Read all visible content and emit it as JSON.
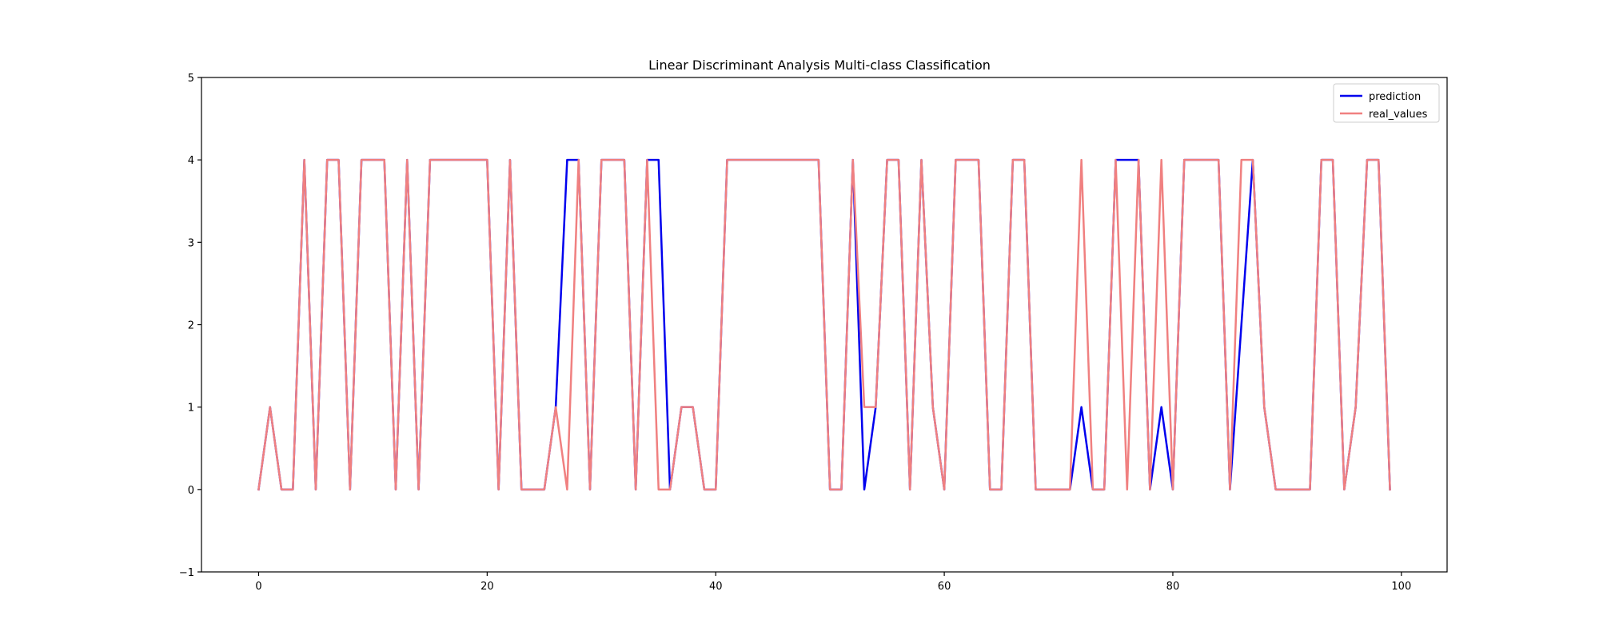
{
  "chart_data": {
    "type": "line",
    "title": "Linear Discriminant Analysis Multi-class Classification",
    "xlabel": "",
    "ylabel": "",
    "xlim": [
      -5,
      104
    ],
    "ylim": [
      -1,
      5
    ],
    "xticks": [
      0,
      20,
      40,
      60,
      80,
      100
    ],
    "yticks": [
      -1,
      0,
      1,
      2,
      3,
      4,
      5
    ],
    "grid": false,
    "legend_position": "top-right",
    "x": [
      0,
      1,
      2,
      3,
      4,
      5,
      6,
      7,
      8,
      9,
      10,
      11,
      12,
      13,
      14,
      15,
      16,
      17,
      18,
      19,
      20,
      21,
      22,
      23,
      24,
      25,
      26,
      27,
      28,
      29,
      30,
      31,
      32,
      33,
      34,
      35,
      36,
      37,
      38,
      39,
      40,
      41,
      42,
      43,
      44,
      45,
      46,
      47,
      48,
      49,
      50,
      51,
      52,
      53,
      54,
      55,
      56,
      57,
      58,
      59,
      60,
      61,
      62,
      63,
      64,
      65,
      66,
      67,
      68,
      69,
      70,
      71,
      72,
      73,
      74,
      75,
      76,
      77,
      78,
      79,
      80,
      81,
      82,
      83,
      84,
      85,
      86,
      87,
      88,
      89,
      90,
      91,
      92,
      93,
      94,
      95,
      96,
      97,
      98,
      99
    ],
    "series": [
      {
        "name": "prediction",
        "color": "#0000ee",
        "values": [
          0,
          1,
          0,
          0,
          4,
          0,
          4,
          4,
          0,
          4,
          4,
          4,
          0,
          4,
          0,
          4,
          4,
          4,
          4,
          4,
          4,
          0,
          4,
          0,
          0,
          0,
          1,
          4,
          4,
          0,
          4,
          4,
          4,
          0,
          4,
          4,
          0,
          1,
          1,
          0,
          0,
          4,
          4,
          4,
          4,
          4,
          4,
          4,
          4,
          4,
          0,
          0,
          4,
          0,
          1,
          4,
          4,
          0,
          4,
          1,
          0,
          4,
          4,
          4,
          0,
          0,
          4,
          4,
          0,
          0,
          0,
          0,
          1,
          0,
          0,
          4,
          4,
          4,
          0,
          1,
          0,
          4,
          4,
          4,
          4,
          0,
          2,
          4,
          1,
          0,
          0,
          0,
          0,
          4,
          4,
          0,
          1,
          4,
          4,
          0
        ]
      },
      {
        "name": "real_values",
        "color": "#f08080",
        "values": [
          0,
          1,
          0,
          0,
          4,
          0,
          4,
          4,
          0,
          4,
          4,
          4,
          0,
          4,
          0,
          4,
          4,
          4,
          4,
          4,
          4,
          0,
          4,
          0,
          0,
          0,
          1,
          0,
          4,
          0,
          4,
          4,
          4,
          0,
          4,
          0,
          0,
          1,
          1,
          0,
          0,
          4,
          4,
          4,
          4,
          4,
          4,
          4,
          4,
          4,
          0,
          0,
          4,
          1,
          1,
          4,
          4,
          0,
          4,
          1,
          0,
          4,
          4,
          4,
          0,
          0,
          4,
          4,
          0,
          0,
          0,
          0,
          4,
          0,
          0,
          4,
          0,
          4,
          0,
          4,
          0,
          4,
          4,
          4,
          4,
          0,
          4,
          4,
          1,
          0,
          0,
          0,
          0,
          4,
          4,
          0,
          1,
          4,
          4,
          0
        ]
      }
    ]
  }
}
